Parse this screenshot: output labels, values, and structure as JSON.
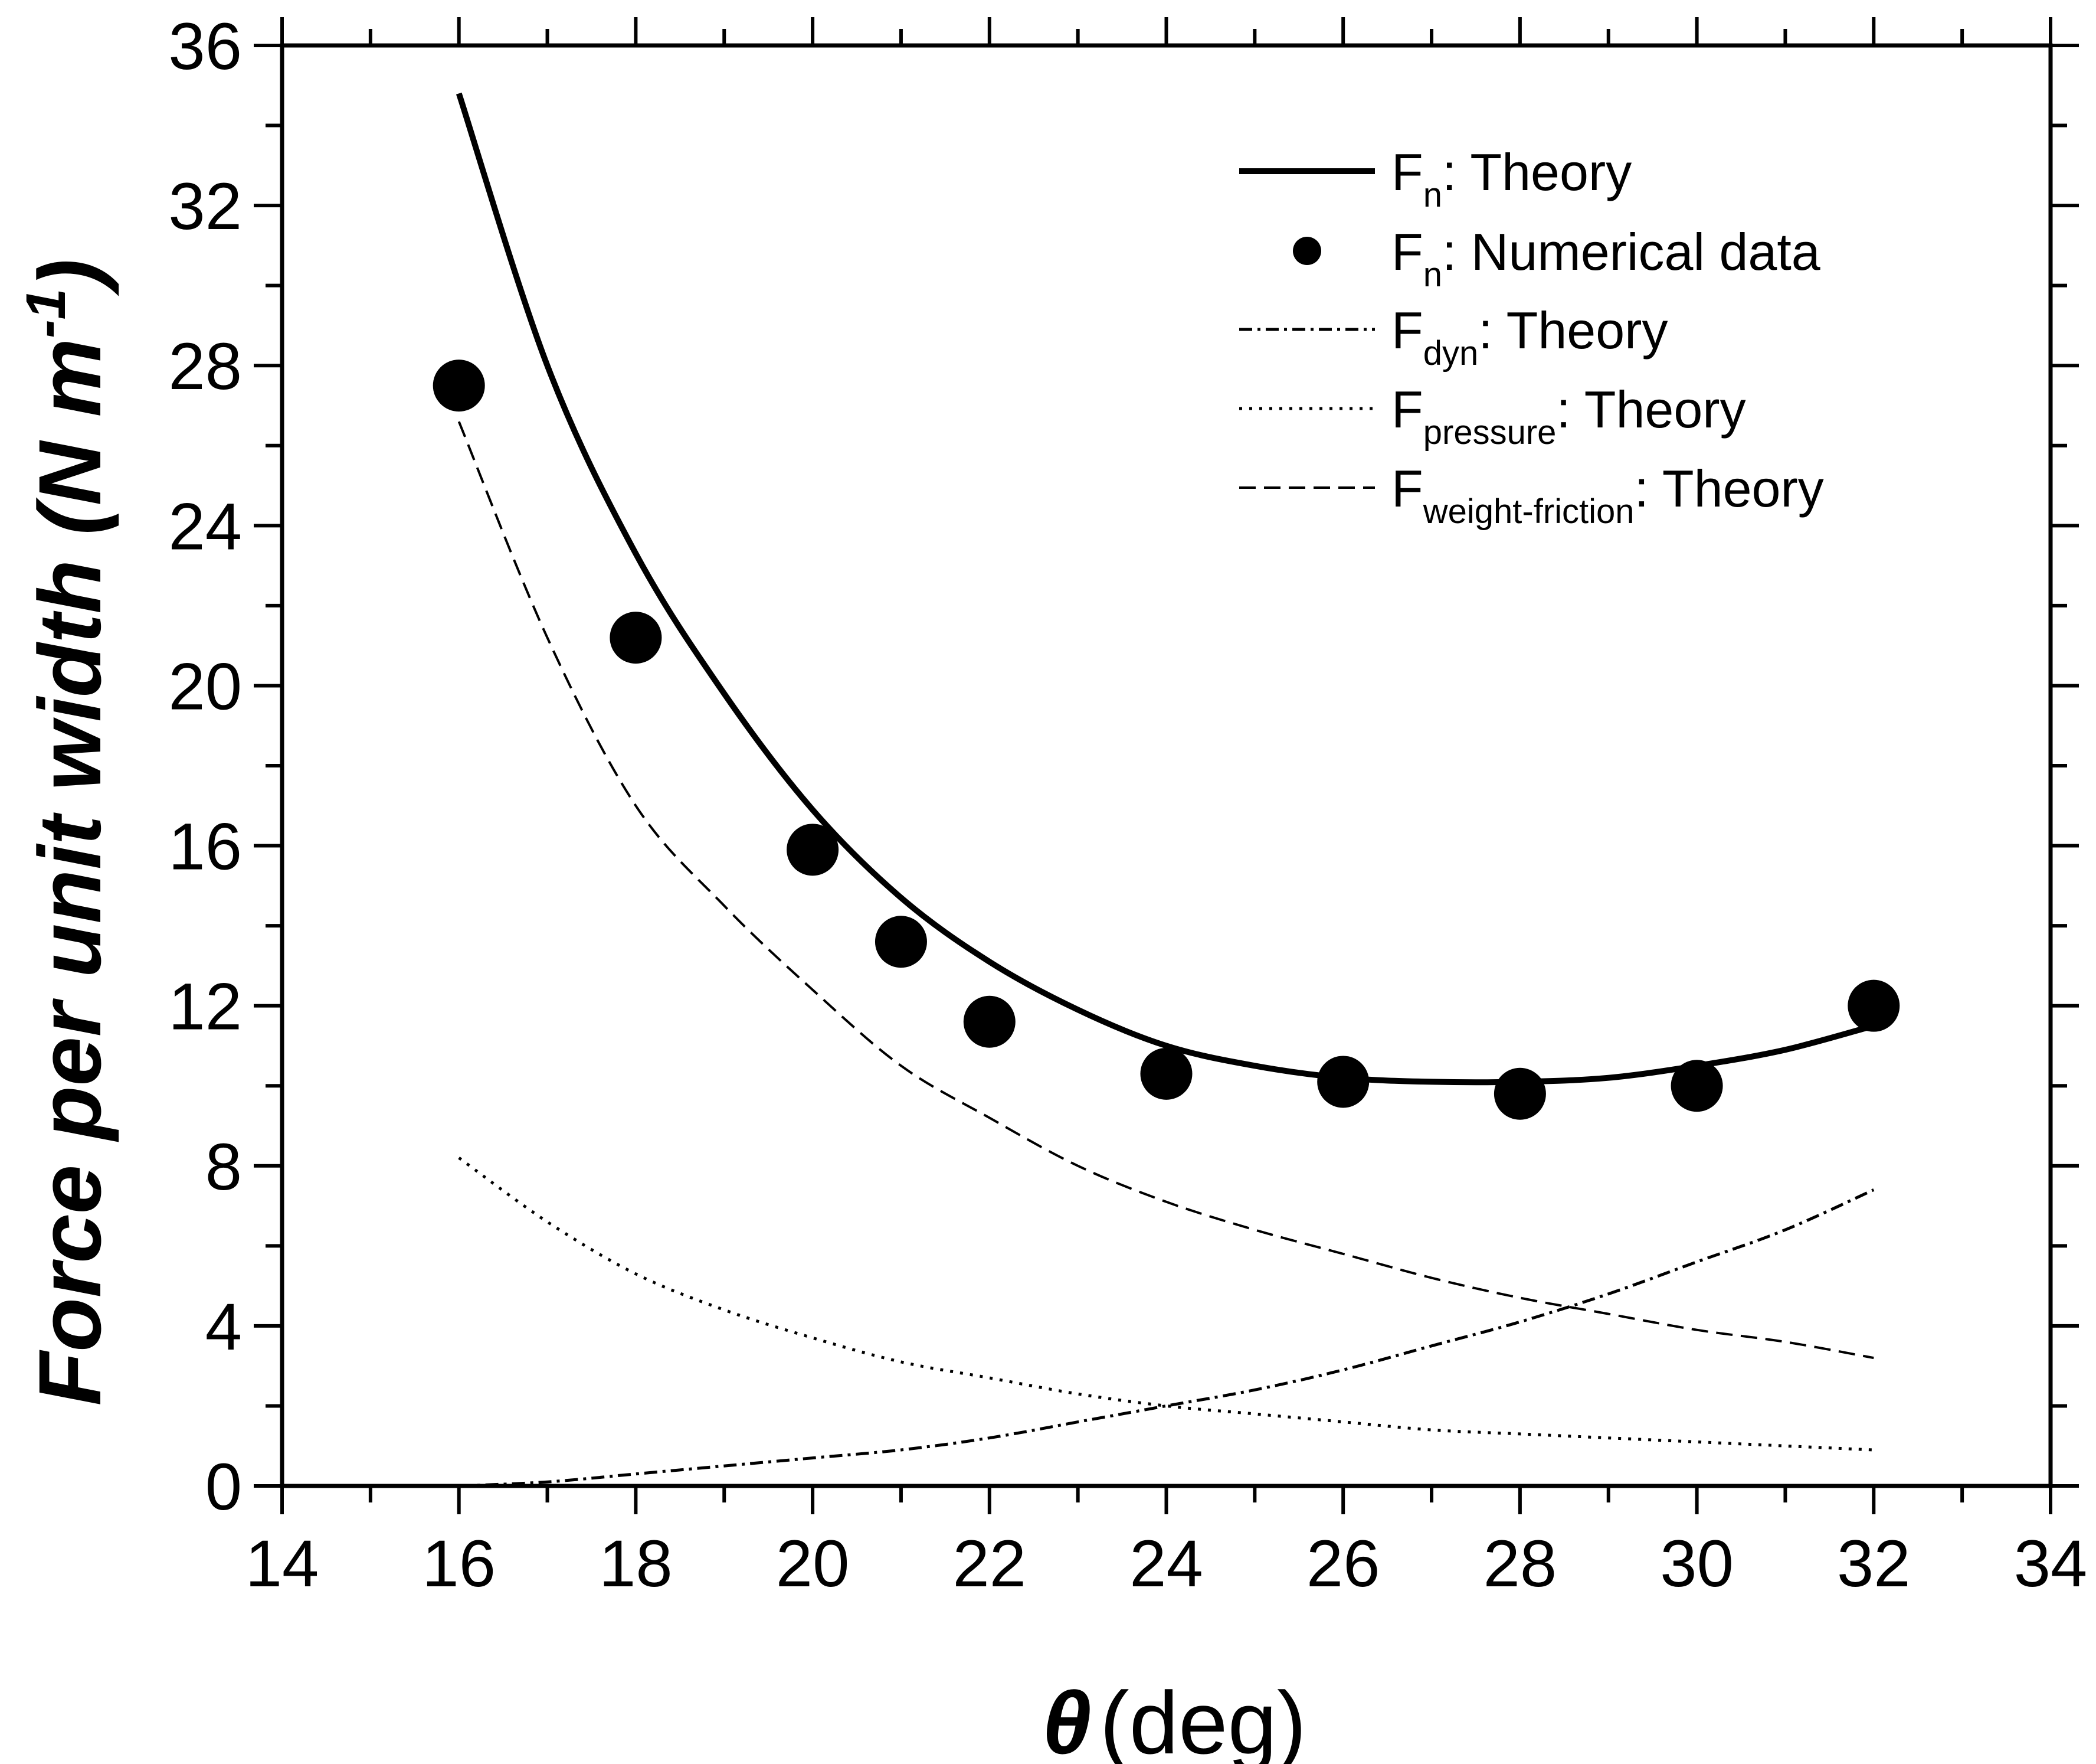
{
  "chart_data": {
    "type": "line",
    "title": "",
    "xlabel_symbol": "θ",
    "xlabel_unit": "(deg)",
    "ylabel": "Force per unit width (N m",
    "ylabel_sup": "-1",
    "ylabel_close": ")",
    "xlim": [
      14,
      34
    ],
    "ylim": [
      0,
      36
    ],
    "x_ticks": [
      14,
      16,
      18,
      20,
      22,
      24,
      26,
      28,
      30,
      32,
      34
    ],
    "x_minor_step": 1,
    "y_ticks": [
      0,
      4,
      8,
      12,
      16,
      20,
      24,
      28,
      32,
      36
    ],
    "y_minor_step": 2,
    "grid": false,
    "legend_position": "top-right",
    "series": [
      {
        "key": "fn-theory",
        "style": "solid",
        "legend": {
          "main": "F",
          "sub": "n",
          "rest": ": Theory"
        },
        "x": [
          16,
          17,
          18,
          19,
          20,
          21,
          22,
          23,
          24,
          25,
          26,
          27,
          28,
          29,
          30,
          31,
          32
        ],
        "y": [
          34.8,
          28.0,
          23.3,
          19.8,
          16.9,
          14.7,
          13.1,
          11.9,
          11.0,
          10.5,
          10.2,
          10.1,
          10.1,
          10.2,
          10.5,
          10.9,
          11.5
        ]
      },
      {
        "key": "fn-numerical",
        "style": "markers",
        "legend": {
          "main": "F",
          "sub": "n",
          "rest": ": Numerical data"
        },
        "x": [
          16,
          18,
          20,
          21,
          22,
          24,
          26,
          28,
          30,
          32
        ],
        "y": [
          27.5,
          21.2,
          15.9,
          13.6,
          11.6,
          10.3,
          10.1,
          9.8,
          10.0,
          12.0
        ]
      },
      {
        "key": "fdyn-theory",
        "style": "dashdot",
        "legend": {
          "main": "F",
          "sub": "dyn",
          "rest": ": Theory"
        },
        "x": [
          16,
          17,
          18,
          19,
          20,
          21,
          22,
          23,
          24,
          25,
          26,
          27,
          28,
          29,
          30,
          31,
          32
        ],
        "y": [
          0.0,
          0.1,
          0.3,
          0.5,
          0.7,
          0.9,
          1.2,
          1.6,
          2.0,
          2.4,
          2.9,
          3.5,
          4.1,
          4.8,
          5.6,
          6.4,
          7.4
        ]
      },
      {
        "key": "fpressure-theory",
        "style": "dotted",
        "legend": {
          "main": "F",
          "sub": "pressure",
          "rest": ": Theory"
        },
        "x": [
          16,
          17,
          18,
          19,
          20,
          21,
          22,
          23,
          24,
          25,
          26,
          27,
          28,
          29,
          30,
          31,
          32
        ],
        "y": [
          8.2,
          6.6,
          5.3,
          4.4,
          3.7,
          3.1,
          2.7,
          2.3,
          2.0,
          1.8,
          1.6,
          1.4,
          1.3,
          1.2,
          1.1,
          1.0,
          0.9
        ]
      },
      {
        "key": "fweight-theory",
        "style": "dashed",
        "legend": {
          "main": "F",
          "sub": "weight-friction",
          "rest": ": Theory"
        },
        "x": [
          16,
          17,
          18,
          19,
          20,
          21,
          22,
          23,
          24,
          25,
          26,
          27,
          28,
          29,
          30,
          31,
          32
        ],
        "y": [
          26.6,
          21.2,
          17.0,
          14.5,
          12.4,
          10.5,
          9.2,
          8.0,
          7.1,
          6.4,
          5.8,
          5.2,
          4.7,
          4.3,
          3.9,
          3.6,
          3.2
        ]
      }
    ]
  }
}
